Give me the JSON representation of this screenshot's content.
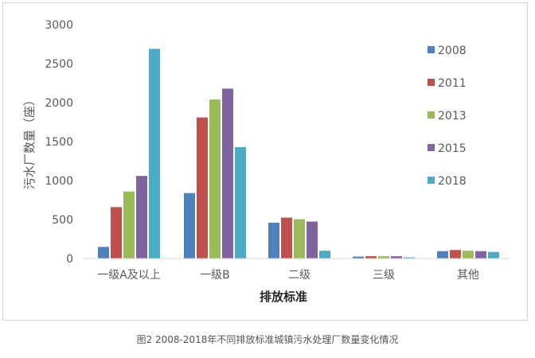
{
  "chart_data": {
    "type": "bar",
    "xlabel": "排放标准",
    "ylabel": "污水厂数量（座）",
    "ylim": [
      0,
      3000
    ],
    "yticks": [
      "0",
      "500",
      "1000",
      "1500",
      "2000",
      "2500",
      "3000"
    ],
    "categories": [
      "一级A及以上",
      "一级B",
      "二级",
      "三级",
      "其他"
    ],
    "series": [
      {
        "name": "2008",
        "color": "#4e81bd",
        "values": [
          150,
          840,
          460,
          25,
          95
        ]
      },
      {
        "name": "2011",
        "color": "#c0504d",
        "values": [
          660,
          1810,
          525,
          30,
          110
        ]
      },
      {
        "name": "2013",
        "color": "#9bbb59",
        "values": [
          860,
          2040,
          505,
          30,
          100
        ]
      },
      {
        "name": "2015",
        "color": "#8064a2",
        "values": [
          1060,
          2180,
          475,
          30,
          95
        ]
      },
      {
        "name": "2018",
        "color": "#4bacc6",
        "values": [
          2690,
          1430,
          100,
          15,
          85
        ]
      }
    ],
    "grid": false,
    "legend_position": "right"
  },
  "caption": "图2  2008-2018年不同排放标准城镇污水处理厂数量变化情况"
}
